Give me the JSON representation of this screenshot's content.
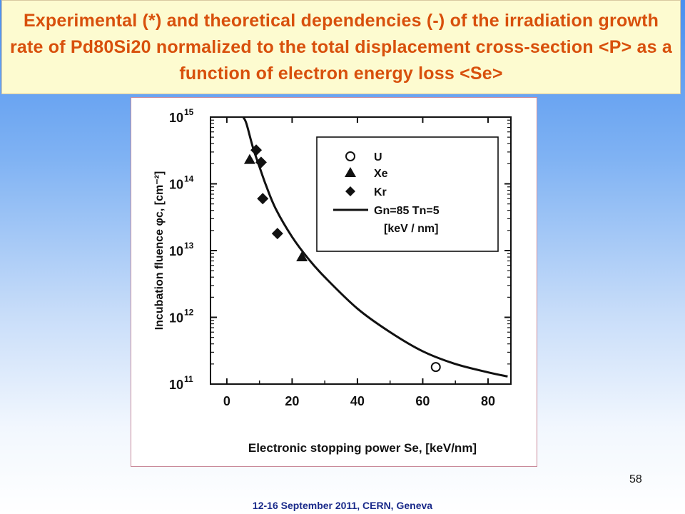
{
  "slide": {
    "title": "Experimental (*) and theoretical dependencies (-) of the irradiation growth rate of Pd80Si20 normalized to the total displacement cross-section <P> as a function of electron energy loss <Se>",
    "page_number": "58",
    "footer": "12-16  September 2011, CERN, Geneva"
  },
  "chart_data": {
    "type": "scatter",
    "xlabel": "Electronic stopping power  Se, [keV/nm]",
    "ylabel": "Incubation fluence  φc, [cm⁻²]",
    "x_ticks": [
      "0",
      "20",
      "40",
      "60",
      "80"
    ],
    "y_ticks": [
      "10^11",
      "10^12",
      "10^13",
      "10^14",
      "10^15"
    ],
    "xlim": [
      -5,
      87
    ],
    "ylim_log10": [
      11,
      15
    ],
    "y_scale": "log",
    "grid": false,
    "legend_position": "top-right",
    "series": [
      {
        "name": "U",
        "marker": "open-circle",
        "points": [
          [
            64,
            180000000000.0
          ]
        ]
      },
      {
        "name": "Xe",
        "marker": "filled-triangle",
        "points": [
          [
            7,
            230000000000000.0
          ],
          [
            23,
            8000000000000.0
          ]
        ]
      },
      {
        "name": "Kr",
        "marker": "filled-diamond",
        "points": [
          [
            9,
            320000000000000.0
          ],
          [
            10.5,
            210000000000000.0
          ],
          [
            11,
            60000000000000.0
          ],
          [
            15.5,
            18000000000000.0
          ]
        ]
      }
    ],
    "theory_curve": {
      "name": "Gn=85  Tn=5",
      "unit_note": "[keV / nm]",
      "points": [
        [
          5,
          1300000000000000.0
        ],
        [
          6,
          800000000000000.0
        ],
        [
          8,
          350000000000000.0
        ],
        [
          10,
          180000000000000.0
        ],
        [
          12,
          95000000000000.0
        ],
        [
          15,
          42000000000000.0
        ],
        [
          20,
          16000000000000.0
        ],
        [
          25,
          7500000000000.0
        ],
        [
          30,
          4000000000000.0
        ],
        [
          40,
          1350000000000.0
        ],
        [
          50,
          600000000000.0
        ],
        [
          60,
          310000000000.0
        ],
        [
          70,
          200000000000.0
        ],
        [
          80,
          150000000000.0
        ],
        [
          86,
          130000000000.0
        ]
      ]
    }
  }
}
